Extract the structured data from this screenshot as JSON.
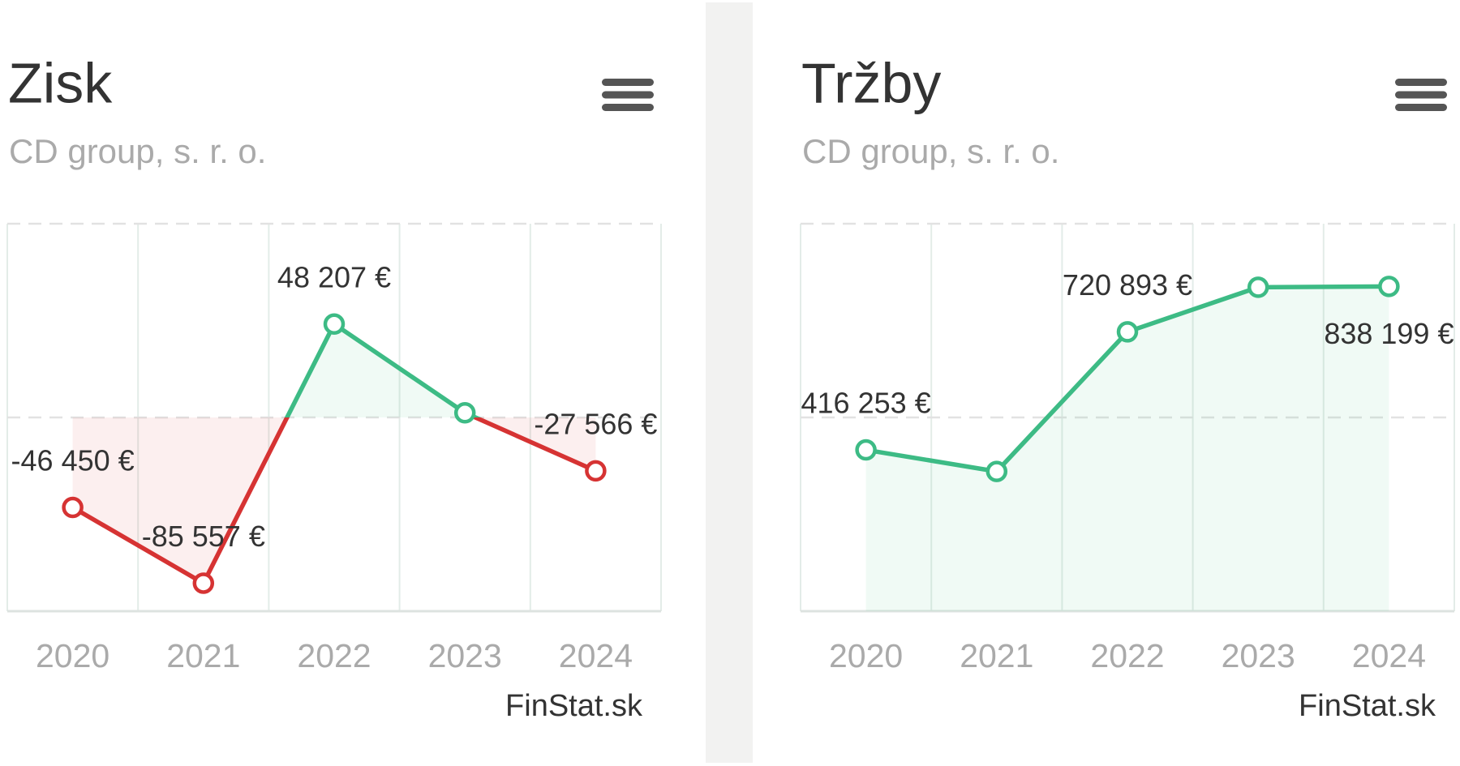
{
  "chart_data": [
    {
      "type": "line",
      "title": "Zisk",
      "subtitle": "CD group, s. r. o.",
      "categories": [
        "2020",
        "2021",
        "2022",
        "2023",
        "2024"
      ],
      "values": [
        -46450,
        -85557,
        48207,
        2400,
        -27566
      ],
      "value_labels": [
        "-46 450 €",
        "-85 557 €",
        "48 207 €",
        null,
        "-27 566 €"
      ],
      "color": "#3dbb85",
      "negative_color": "#d63333",
      "ylim": [
        -100000,
        100000
      ],
      "yticks": [
        -100000,
        0,
        100000
      ],
      "grid": true,
      "credit": "FinStat.sk"
    },
    {
      "type": "line",
      "title": "Tržby",
      "subtitle": "CD group, s. r. o.",
      "categories": [
        "2020",
        "2021",
        "2022",
        "2023",
        "2024"
      ],
      "values": [
        416253,
        360600,
        720893,
        836000,
        838199
      ],
      "value_labels": [
        "416 253 €",
        null,
        "720 893 €",
        null,
        "838 199 €"
      ],
      "color": "#3dbb85",
      "ylim": [
        0,
        1000000
      ],
      "yticks": [
        0,
        500000,
        1000000
      ],
      "grid": true,
      "credit": "FinStat.sk"
    }
  ]
}
